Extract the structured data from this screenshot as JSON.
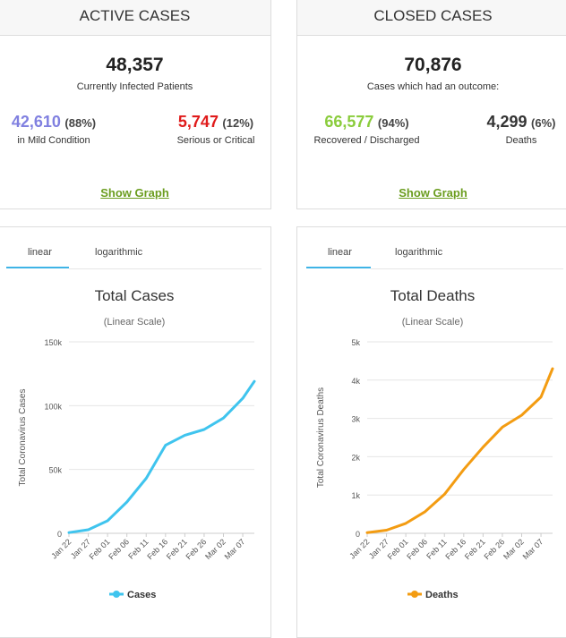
{
  "active": {
    "header": "ACTIVE CASES",
    "total": "48,357",
    "subtitle": "Currently Infected Patients",
    "mild": {
      "value": "42,610",
      "pct": "(88%)",
      "label": "in Mild Condition",
      "color": "#8080e0"
    },
    "serious": {
      "value": "5,747",
      "pct": "(12%)",
      "label": "Serious or Critical",
      "color": "#e01b1b"
    },
    "link": "Show Graph"
  },
  "closed": {
    "header": "CLOSED CASES",
    "total": "70,876",
    "subtitle": "Cases which had an outcome:",
    "recovered": {
      "value": "66,577",
      "pct": "(94%)",
      "label": "Recovered / Discharged",
      "color": "#8acc3c"
    },
    "deaths": {
      "value": "4,299",
      "pct": "(6%)",
      "label": "Deaths",
      "color": "#444444"
    },
    "link": "Show Graph"
  },
  "tabs": {
    "linear": "linear",
    "log": "logarithmic"
  },
  "chart_data": [
    {
      "type": "line",
      "title": "Total Cases",
      "subtitle": "(Linear Scale)",
      "ylabel": "Total Coronavirus Cases",
      "xlabel": "",
      "ylim": [
        0,
        150000
      ],
      "yticks": [
        "0",
        "50k",
        "100k",
        "150k"
      ],
      "xticks": [
        "Jan 22",
        "Jan 27",
        "Feb 01",
        "Feb 06",
        "Feb 11",
        "Feb 16",
        "Feb 21",
        "Feb 26",
        "Mar 02",
        "Mar 07"
      ],
      "color": "#3fc4ee",
      "legend": "Cases",
      "series": [
        {
          "name": "Cases",
          "values": [
            580,
            2800,
            9800,
            24500,
            43100,
            69000,
            76800,
            81300,
            90300,
            105800,
            119000
          ]
        }
      ],
      "x_index": [
        0,
        5,
        10,
        15,
        20,
        25,
        30,
        35,
        40,
        45,
        48
      ]
    },
    {
      "type": "line",
      "title": "Total Deaths",
      "subtitle": "(Linear Scale)",
      "ylabel": "Total Coronavirus Deaths",
      "xlabel": "",
      "ylim": [
        0,
        5000
      ],
      "yticks": [
        "0",
        "1k",
        "2k",
        "3k",
        "4k",
        "5k"
      ],
      "xticks": [
        "Jan 22",
        "Jan 27",
        "Feb 01",
        "Feb 06",
        "Feb 11",
        "Feb 16",
        "Feb 21",
        "Feb 26",
        "Mar 02",
        "Mar 07"
      ],
      "color": "#f39c12",
      "legend": "Deaths",
      "series": [
        {
          "name": "Deaths",
          "values": [
            17,
            82,
            259,
            565,
            1018,
            1666,
            2250,
            2770,
            3085,
            3560,
            4300
          ]
        }
      ],
      "x_index": [
        0,
        5,
        10,
        15,
        20,
        25,
        30,
        35,
        40,
        45,
        48
      ]
    }
  ]
}
